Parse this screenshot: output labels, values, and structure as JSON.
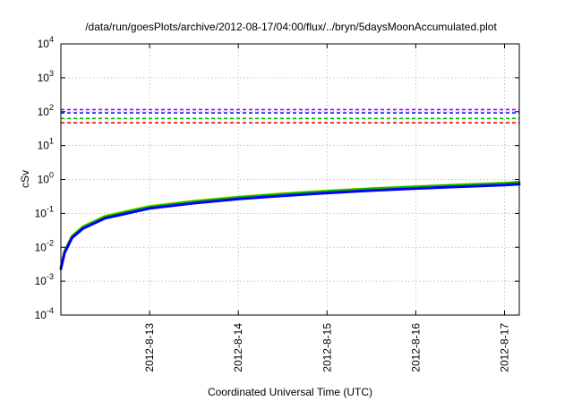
{
  "chart_data": {
    "type": "line",
    "title": "/data/run/goesPlots/archive/2012-08-17/04:00/flux/../bryn/5daysMoonAccumulated.plot",
    "xlabel": "Coordinated Universal Time (UTC)",
    "ylabel": "cSv",
    "xscale": "linear",
    "yscale": "log",
    "xlim": [
      "2012-08-12 00:00",
      "2012-08-17 04:00"
    ],
    "ylim": [
      0.0001,
      10000
    ],
    "grid": true,
    "x_ticks": [
      {
        "value": "2012-08-13 00:00",
        "label": "2012-8-13"
      },
      {
        "value": "2012-08-14 00:00",
        "label": "2012-8-14"
      },
      {
        "value": "2012-08-15 00:00",
        "label": "2012-8-15"
      },
      {
        "value": "2012-08-16 00:00",
        "label": "2012-8-16"
      },
      {
        "value": "2012-08-17 00:00",
        "label": "2012-8-17"
      }
    ],
    "y_ticks": [
      {
        "value": 0.0001,
        "base": "10",
        "exp": "-4"
      },
      {
        "value": 0.001,
        "base": "10",
        "exp": "-3"
      },
      {
        "value": 0.01,
        "base": "10",
        "exp": "-2"
      },
      {
        "value": 0.1,
        "base": "10",
        "exp": "-1"
      },
      {
        "value": 1,
        "base": "10",
        "exp": "0"
      },
      {
        "value": 10,
        "base": "10",
        "exp": "1"
      },
      {
        "value": 100,
        "base": "10",
        "exp": "2"
      },
      {
        "value": 1000,
        "base": "10",
        "exp": "3"
      },
      {
        "value": 10000,
        "base": "10",
        "exp": "4"
      }
    ],
    "reference_lines": [
      {
        "value": 115,
        "color": "#a000ff",
        "style": "dashed"
      },
      {
        "value": 92,
        "color": "#0000ff",
        "style": "dashed"
      },
      {
        "value": 63,
        "color": "#00c000",
        "style": "dashed"
      },
      {
        "value": 47,
        "color": "#ff0000",
        "style": "dashed"
      }
    ],
    "series": [
      {
        "color": "#e6e600",
        "width": 2.5,
        "x": [
          "2012-08-12 00:00",
          "2012-08-12 01:00",
          "2012-08-12 03:00",
          "2012-08-12 06:00",
          "2012-08-12 12:00",
          "2012-08-13 00:00",
          "2012-08-13 12:00",
          "2012-08-14 00:00",
          "2012-08-14 12:00",
          "2012-08-15 00:00",
          "2012-08-15 12:00",
          "2012-08-16 00:00",
          "2012-08-16 12:00",
          "2012-08-17 00:00",
          "2012-08-17 04:00"
        ],
        "y": [
          0.0027,
          0.008,
          0.022,
          0.042,
          0.085,
          0.165,
          0.235,
          0.31,
          0.39,
          0.47,
          0.55,
          0.63,
          0.71,
          0.8,
          0.86
        ]
      },
      {
        "color": "#00c000",
        "width": 2.5,
        "x": [
          "2012-08-12 00:00",
          "2012-08-12 01:00",
          "2012-08-12 03:00",
          "2012-08-12 06:00",
          "2012-08-12 12:00",
          "2012-08-13 00:00",
          "2012-08-13 12:00",
          "2012-08-14 00:00",
          "2012-08-14 12:00",
          "2012-08-15 00:00",
          "2012-08-15 12:00",
          "2012-08-16 00:00",
          "2012-08-16 12:00",
          "2012-08-17 00:00",
          "2012-08-17 04:00"
        ],
        "y": [
          0.0026,
          0.0077,
          0.021,
          0.04,
          0.081,
          0.158,
          0.225,
          0.3,
          0.375,
          0.455,
          0.535,
          0.615,
          0.695,
          0.78,
          0.84
        ]
      },
      {
        "color": "#0000ff",
        "width": 3,
        "x": [
          "2012-08-12 00:00",
          "2012-08-12 01:00",
          "2012-08-12 03:00",
          "2012-08-12 06:00",
          "2012-08-12 12:00",
          "2012-08-13 00:00",
          "2012-08-13 12:00",
          "2012-08-14 00:00",
          "2012-08-14 12:00",
          "2012-08-15 00:00",
          "2012-08-15 12:00",
          "2012-08-16 00:00",
          "2012-08-16 12:00",
          "2012-08-17 00:00",
          "2012-08-17 04:00"
        ],
        "y": [
          0.0023,
          0.0068,
          0.019,
          0.036,
          0.072,
          0.14,
          0.2,
          0.265,
          0.33,
          0.4,
          0.47,
          0.54,
          0.61,
          0.68,
          0.73
        ]
      }
    ]
  }
}
